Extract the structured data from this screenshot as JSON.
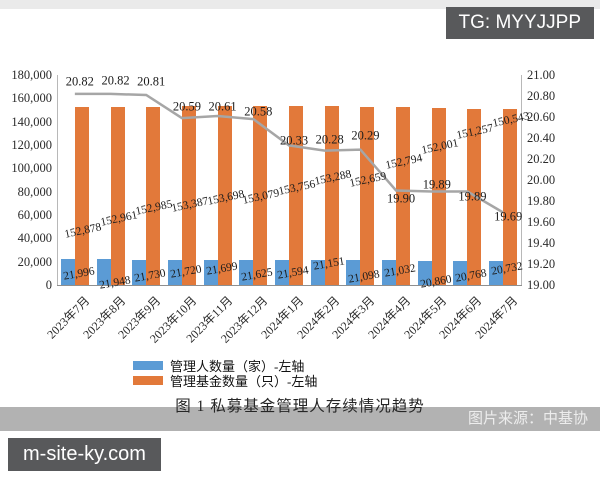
{
  "badges": {
    "telegram": "TG: MYYJJPP",
    "site": "m-site-ky.com"
  },
  "source_watermark": "图片来源：中基协",
  "caption": "图 1 私募基金管理人存续情况趋势",
  "colors": {
    "bar_blue": "#5B9BD5",
    "bar_orange": "#E2793A",
    "line_gray": "#A6A6A6",
    "badge_bg": "#58595B",
    "band_bg": "#B2B2B2"
  },
  "chart_data": {
    "type": "combo-bar-line",
    "title": "图 1 私募基金管理人存续情况趋势",
    "grid": false,
    "legend_position": "bottom-left",
    "legend": [
      "管理人数量（家）-左轴",
      "管理基金数量（只）-左轴"
    ],
    "categories": [
      "2023年7月",
      "2023年8月",
      "2023年9月",
      "2023年10月",
      "2023年11月",
      "2023年12月",
      "2024年1月",
      "2024年2月",
      "2024年3月",
      "2024年4月",
      "2024年5月",
      "2024年6月",
      "2024年7月"
    ],
    "series": [
      {
        "name": "管理人数量（家）-左轴",
        "type": "bar",
        "axis": "left",
        "color": "#5B9BD5",
        "values": [
          21996,
          21948,
          21730,
          21720,
          21699,
          21625,
          21594,
          21151,
          21098,
          21032,
          20860,
          20768,
          20732
        ],
        "labels": [
          "21,996",
          "21,948",
          "21,730",
          "21,720",
          "21,699",
          "21,625",
          "21,594",
          "21,151",
          "21,098",
          "21,032",
          "20,860",
          "20,768",
          "20,732"
        ]
      },
      {
        "name": "管理基金数量（只）-左轴",
        "type": "bar",
        "axis": "left",
        "color": "#E2793A",
        "values": [
          152878,
          152961,
          152985,
          153387,
          153698,
          153079,
          153756,
          153288,
          152659,
          152794,
          152001,
          151257,
          150543
        ],
        "labels": [
          "152,878",
          "152,961",
          "152,985",
          "153,387",
          "153,698",
          "153,079",
          "153,756",
          "153,288",
          "152,659",
          "152,794",
          "152,001",
          "151,257",
          "150,543"
        ]
      },
      {
        "name": "",
        "type": "line",
        "axis": "right",
        "color": "#A6A6A6",
        "values": [
          20.82,
          20.82,
          20.81,
          20.59,
          20.61,
          20.58,
          20.33,
          20.28,
          20.29,
          19.9,
          19.89,
          19.89,
          19.69
        ],
        "labels": [
          "20.82",
          "20.82",
          "20.81",
          "20.59",
          "20.61",
          "20.58",
          "20.33",
          "20.28",
          "20.29",
          "19.90",
          "19.89",
          "19.89",
          "19.69"
        ]
      }
    ],
    "left_axis": {
      "min": 0,
      "max": 180000,
      "step": 20000,
      "tick_labels": [
        "180,000",
        "160,000",
        "140,000",
        "120,000",
        "100,000",
        "80,000",
        "60,000",
        "40,000",
        "20,000",
        "0"
      ]
    },
    "right_axis": {
      "min": 19.0,
      "max": 21.0,
      "step": 0.2,
      "tick_labels": [
        "21.00",
        "20.80",
        "20.60",
        "20.40",
        "20.20",
        "20.00",
        "19.80",
        "19.60",
        "19.40",
        "19.20",
        "19.00"
      ]
    }
  }
}
